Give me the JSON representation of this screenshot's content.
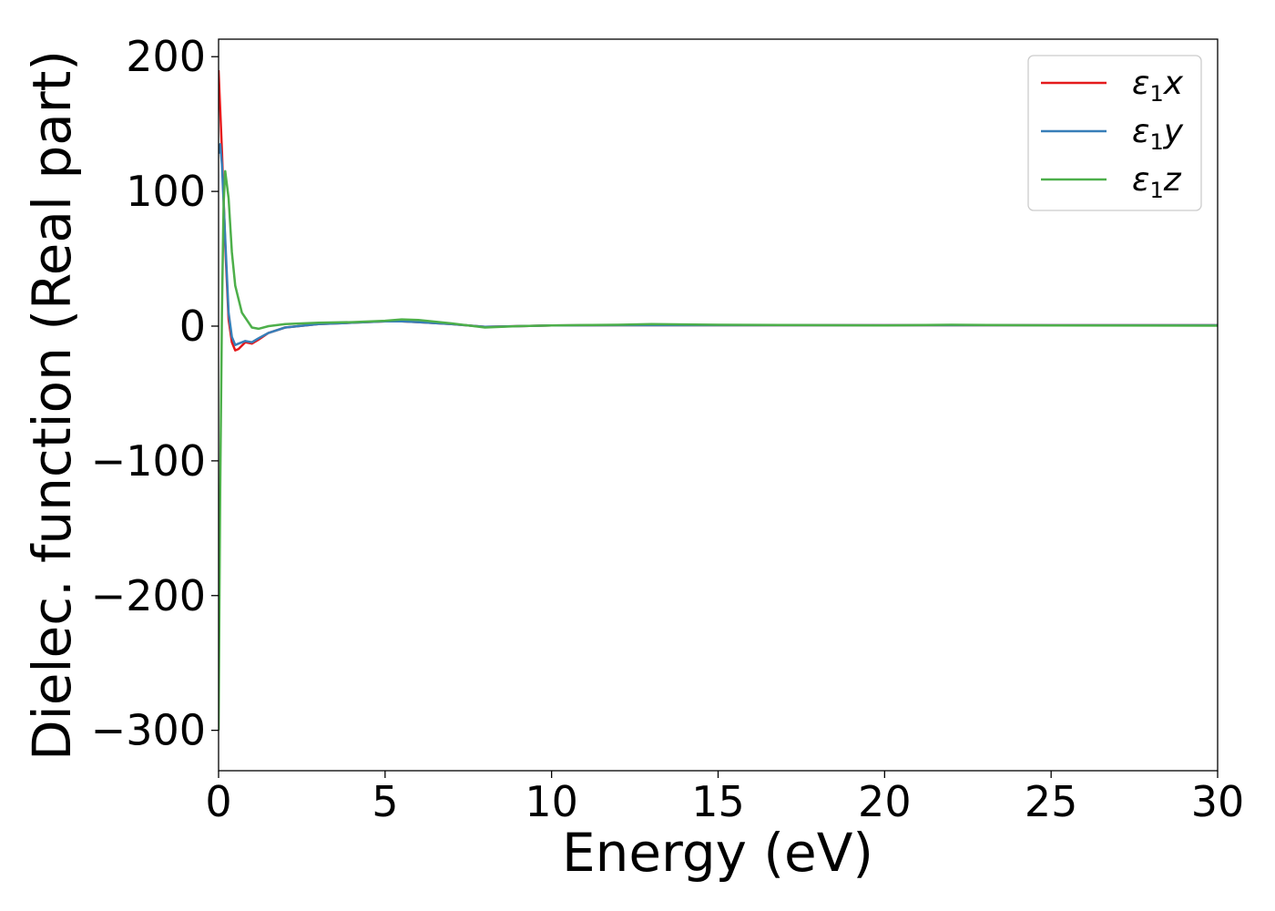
{
  "chart_data": {
    "type": "line",
    "title": "",
    "xlabel": "Energy (eV)",
    "ylabel": "Dielec. function (Real part)",
    "xlim": [
      0,
      30
    ],
    "ylim": [
      -330,
      213
    ],
    "xticks": [
      0,
      5,
      10,
      15,
      20,
      25,
      30
    ],
    "xtick_labels": [
      "0",
      "5",
      "10",
      "15",
      "20",
      "25",
      "30"
    ],
    "yticks": [
      -300,
      -200,
      -100,
      0,
      100,
      200
    ],
    "ytick_labels": [
      "−300",
      "−200",
      "−100",
      "0",
      "100",
      "200"
    ],
    "grid": false,
    "legend_position": "top-right",
    "series": [
      {
        "name": "ε₁x",
        "legend_main": "ε",
        "legend_sub": "1",
        "legend_var": "x",
        "color": "#e41a1c",
        "x": [
          0,
          0.1,
          0.2,
          0.3,
          0.4,
          0.5,
          0.6,
          0.8,
          1.0,
          1.2,
          1.5,
          2,
          3,
          4,
          5,
          5.5,
          6,
          7,
          8,
          9,
          10,
          12,
          15,
          20,
          25,
          30
        ],
        "y": [
          190,
          130,
          60,
          5,
          -12,
          -18,
          -17,
          -12,
          -13,
          -10,
          -5,
          -1,
          1.5,
          2.5,
          3.5,
          3.5,
          3,
          1.5,
          -0.5,
          0,
          0.5,
          0.7,
          0.7,
          0.7,
          0.7,
          0.7
        ]
      },
      {
        "name": "ε₁y",
        "legend_main": "ε",
        "legend_sub": "1",
        "legend_var": "y",
        "color": "#377eb8",
        "x": [
          0,
          0.05,
          0.1,
          0.2,
          0.3,
          0.4,
          0.5,
          0.6,
          0.8,
          1.0,
          1.2,
          1.5,
          2,
          3,
          4,
          5,
          5.5,
          6,
          7,
          8,
          9,
          10,
          12,
          15,
          20,
          25,
          30
        ],
        "y": [
          128,
          135,
          120,
          65,
          10,
          -8,
          -14,
          -13,
          -11,
          -12,
          -9,
          -5,
          -1,
          1.5,
          2.5,
          3.5,
          3.5,
          3,
          1.5,
          -0.5,
          0,
          0.5,
          0.7,
          0.7,
          0.7,
          0.7,
          0.7
        ]
      },
      {
        "name": "ε₁z",
        "legend_main": "ε",
        "legend_sub": "1",
        "legend_var": "z",
        "color": "#4daf4a",
        "x": [
          0,
          0.05,
          0.1,
          0.15,
          0.2,
          0.3,
          0.4,
          0.5,
          0.7,
          1.0,
          1.2,
          1.5,
          2,
          3,
          4,
          5,
          5.5,
          6,
          7,
          8,
          9,
          10,
          12,
          13,
          15,
          20,
          22,
          25,
          30
        ],
        "y": [
          -300,
          -120,
          10,
          90,
          115,
          95,
          55,
          30,
          10,
          -1,
          -2,
          0,
          1.5,
          2.5,
          3,
          4,
          5,
          4.5,
          2,
          -1,
          0,
          0.5,
          1,
          1.5,
          1,
          0.5,
          1,
          0.5,
          0.3
        ]
      }
    ]
  }
}
